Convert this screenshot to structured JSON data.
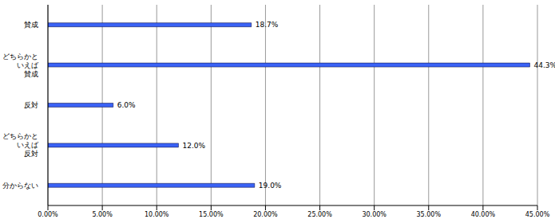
{
  "chart_data": {
    "type": "bar",
    "orientation": "horizontal",
    "categories": [
      "賛成",
      "どちらかと\nいえば\n賛成",
      "反対",
      "どちらかと\nいえば\n反対",
      "分からない"
    ],
    "values": [
      18.7,
      44.3,
      6.0,
      12.0,
      19.0
    ],
    "value_labels": [
      "18.7%",
      "44.3%",
      "6.0%",
      "12.0%",
      "19.0%"
    ],
    "data_labels": true,
    "color": "#3a62f5",
    "xlim": [
      0,
      45
    ],
    "xticks": [
      {
        "value": 0,
        "label": "0.00%"
      },
      {
        "value": 5,
        "label": "5.00%"
      },
      {
        "value": 10,
        "label": "10.00%"
      },
      {
        "value": 15,
        "label": "15.00%"
      },
      {
        "value": 20,
        "label": "20.00%"
      },
      {
        "value": 25,
        "label": "25.00%"
      },
      {
        "value": 30,
        "label": "30.00%"
      },
      {
        "value": 35,
        "label": "35.00%"
      },
      {
        "value": 40,
        "label": "40.00%"
      },
      {
        "value": 45,
        "label": "45.00%"
      }
    ],
    "grid": true
  }
}
